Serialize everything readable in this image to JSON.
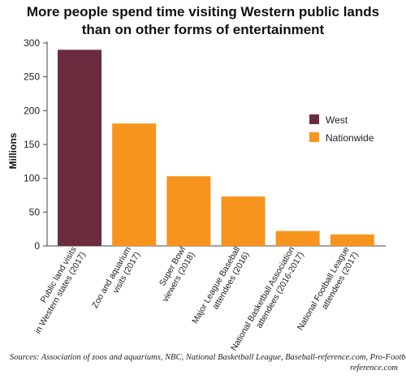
{
  "chart_data": {
    "type": "bar",
    "title_lines": [
      "More people spend time visiting Western public lands",
      "than on other forms of entertainment"
    ],
    "xlabel": "",
    "ylabel": "Millions",
    "ylim": [
      0,
      300
    ],
    "yticks": [
      0,
      50,
      100,
      150,
      200,
      250,
      300
    ],
    "grid": false,
    "legend_placement": "right",
    "categories": [
      [
        "Public land visits",
        "in Western states (2017)"
      ],
      [
        "Zoo and aquarium",
        "visits (2017)"
      ],
      [
        "Super Bowl",
        "viewers (2018)"
      ],
      [
        "Major League Baseball",
        "attendees (2016)"
      ],
      [
        "National Basketball Association",
        "attendees (2016-2017)"
      ],
      [
        "National Football League",
        "attendees (2017)"
      ]
    ],
    "values": [
      290,
      181,
      103,
      73,
      22,
      17
    ],
    "bar_series": [
      "West",
      "Nationwide",
      "Nationwide",
      "Nationwide",
      "Nationwide",
      "Nationwide"
    ],
    "legend": [
      {
        "name": "West",
        "color": "#6b2d3e"
      },
      {
        "name": "Nationwide",
        "color": "#f7941d"
      }
    ],
    "sources_lines": [
      "Sources: Association of zoos and aquariums, NBC, National Basketball League, Baseball-reference.com, Pro-Football-",
      "reference.com"
    ]
  }
}
